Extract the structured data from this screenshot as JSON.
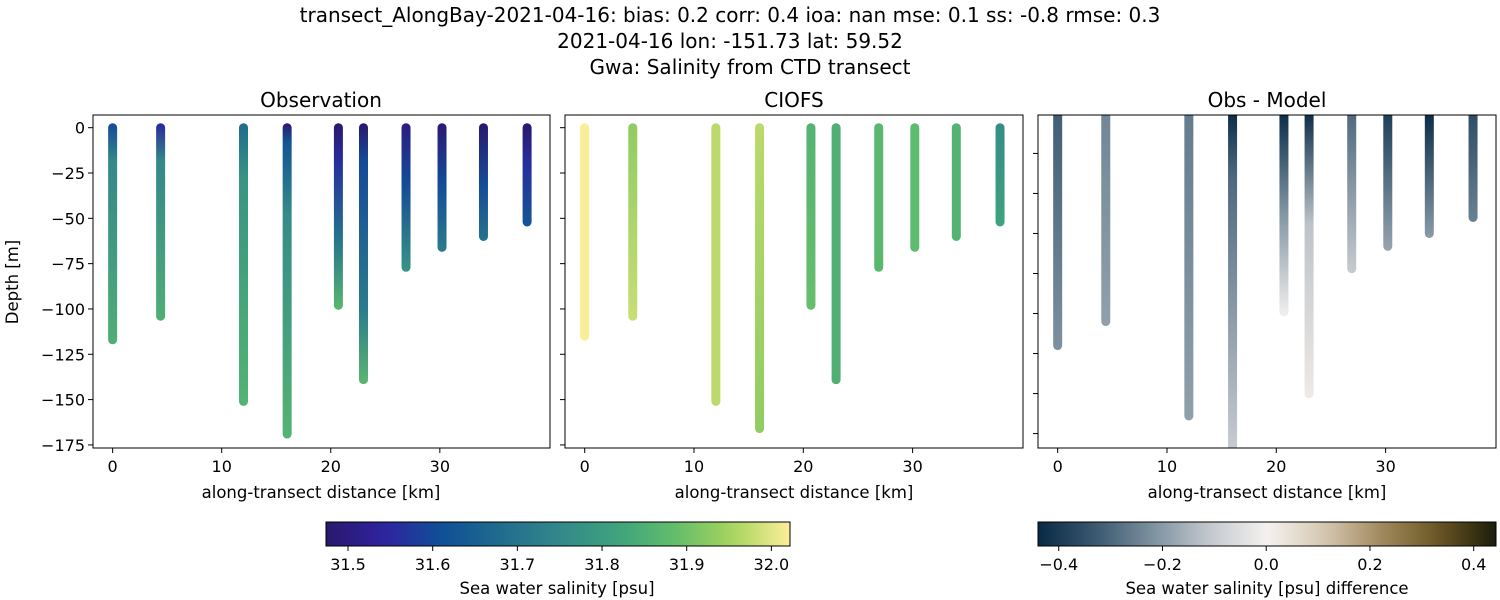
{
  "suptitle": [
    "transect_AlongBay-2021-04-16: bias: 0.2  corr: 0.4  ioa: nan  mse: 0.1  ss: -0.8  rmse: 0.3",
    "2021-04-16 lon: -151.73 lat: 59.52",
    "Gwa: Salinity from CTD transect"
  ],
  "chart_data": [
    {
      "type": "scatter",
      "title": "Observation",
      "xlabel": "along-transect distance [km]",
      "ylabel": "Depth [m]",
      "xlim": [
        -1.8,
        40.1
      ],
      "ylim": [
        -176.7,
        7
      ],
      "xticks": [
        "0",
        "10",
        "20",
        "30"
      ],
      "yticks": [
        "0",
        "−25",
        "−50",
        "−75",
        "−100",
        "−125",
        "−150",
        "−175"
      ],
      "colormap": "haline",
      "profiles": [
        {
          "x": 0,
          "depth": -117,
          "stops": [
            [
              0,
              31.6
            ],
            [
              -20,
              31.75
            ],
            [
              -117,
              31.85
            ]
          ]
        },
        {
          "x": 4.4,
          "depth": -104,
          "stops": [
            [
              0,
              31.55
            ],
            [
              -20,
              31.75
            ],
            [
              -104,
              31.85
            ]
          ]
        },
        {
          "x": 12,
          "depth": -151,
          "stops": [
            [
              0,
              31.68
            ],
            [
              -30,
              31.78
            ],
            [
              -151,
              31.86
            ]
          ]
        },
        {
          "x": 16,
          "depth": -169,
          "stops": [
            [
              0,
              31.45
            ],
            [
              -10,
              31.62
            ],
            [
              -50,
              31.76
            ],
            [
              -169,
              31.86
            ]
          ]
        },
        {
          "x": 20.7,
          "depth": -98,
          "stops": [
            [
              0,
              31.45
            ],
            [
              -20,
              31.56
            ],
            [
              -60,
              31.7
            ],
            [
              -98,
              31.87
            ]
          ]
        },
        {
          "x": 23,
          "depth": -139,
          "stops": [
            [
              0,
              31.46
            ],
            [
              -20,
              31.6
            ],
            [
              -100,
              31.72
            ],
            [
              -139,
              31.87
            ]
          ]
        },
        {
          "x": 26.9,
          "depth": -77,
          "stops": [
            [
              0,
              31.5
            ],
            [
              -30,
              31.6
            ],
            [
              -77,
              31.78
            ]
          ]
        },
        {
          "x": 30.2,
          "depth": -66,
          "stops": [
            [
              0,
              31.48
            ],
            [
              -30,
              31.6
            ],
            [
              -66,
              31.72
            ]
          ]
        },
        {
          "x": 34,
          "depth": -60,
          "stops": [
            [
              0,
              31.45
            ],
            [
              -30,
              31.6
            ],
            [
              -60,
              31.7
            ]
          ]
        },
        {
          "x": 38,
          "depth": -52,
          "stops": [
            [
              0,
              31.45
            ],
            [
              -20,
              31.56
            ],
            [
              -52,
              31.63
            ]
          ]
        }
      ]
    },
    {
      "type": "scatter",
      "title": "CIOFS",
      "xlabel": "along-transect distance [km]",
      "xlim": [
        -1.8,
        40.1
      ],
      "ylim": [
        -176.7,
        7
      ],
      "xticks": [
        "0",
        "10",
        "20",
        "30"
      ],
      "colormap": "haline",
      "profiles": [
        {
          "x": 0,
          "depth": -115,
          "stops": [
            [
              0,
              32.02
            ],
            [
              -115,
              32.02
            ]
          ]
        },
        {
          "x": 4.4,
          "depth": -104,
          "stops": [
            [
              0,
              31.93
            ],
            [
              -104,
              31.98
            ]
          ]
        },
        {
          "x": 12,
          "depth": -151,
          "stops": [
            [
              0,
              31.97
            ],
            [
              -151,
              31.97
            ]
          ]
        },
        {
          "x": 16,
          "depth": -166,
          "stops": [
            [
              0,
              31.97
            ],
            [
              -166,
              31.93
            ]
          ]
        },
        {
          "x": 20.7,
          "depth": -98,
          "stops": [
            [
              0,
              31.86
            ],
            [
              -98,
              31.89
            ]
          ]
        },
        {
          "x": 23,
          "depth": -139,
          "stops": [
            [
              0,
              31.85
            ],
            [
              -139,
              31.85
            ]
          ]
        },
        {
          "x": 26.9,
          "depth": -77,
          "stops": [
            [
              0,
              31.87
            ],
            [
              -77,
              31.87
            ]
          ]
        },
        {
          "x": 30.2,
          "depth": -66,
          "stops": [
            [
              0,
              31.88
            ],
            [
              -66,
              31.88
            ]
          ]
        },
        {
          "x": 34,
          "depth": -60,
          "stops": [
            [
              0,
              31.86
            ],
            [
              -60,
              31.86
            ]
          ]
        },
        {
          "x": 38,
          "depth": -52,
          "stops": [
            [
              0,
              31.76
            ],
            [
              -52,
              31.82
            ]
          ]
        }
      ]
    },
    {
      "type": "scatter",
      "title": "Obs - Model",
      "xlabel": "along-transect distance [km]",
      "xlim": [
        -1.8,
        40.1
      ],
      "ylim": [
        -209,
        -1
      ],
      "yticks_values": [
        -25,
        -50,
        -75,
        -100,
        -125,
        -150,
        -175,
        -200
      ],
      "xticks": [
        "0",
        "10",
        "20",
        "30"
      ],
      "colormap": "diff",
      "profiles": [
        {
          "x": 0,
          "depth": -145,
          "stops": [
            [
              -1,
              -0.32
            ],
            [
              -145,
              -0.22
            ]
          ]
        },
        {
          "x": 4.4,
          "depth": -130,
          "stops": [
            [
              -1,
              -0.24
            ],
            [
              -130,
              -0.19
            ]
          ]
        },
        {
          "x": 12,
          "depth": -189,
          "stops": [
            [
              -1,
              -0.26
            ],
            [
              -189,
              -0.19
            ]
          ]
        },
        {
          "x": 16,
          "depth": -208,
          "stops": [
            [
              -1,
              -0.46
            ],
            [
              -40,
              -0.3
            ],
            [
              -208,
              -0.1
            ]
          ]
        },
        {
          "x": 20.7,
          "depth": -124,
          "stops": [
            [
              -1,
              -0.46
            ],
            [
              -60,
              -0.22
            ],
            [
              -124,
              0.0
            ]
          ]
        },
        {
          "x": 23,
          "depth": -175,
          "stops": [
            [
              -1,
              -0.46
            ],
            [
              -70,
              -0.12
            ],
            [
              -175,
              0.02
            ]
          ]
        },
        {
          "x": 26.9,
          "depth": -97,
          "stops": [
            [
              -1,
              -0.3
            ],
            [
              -97,
              -0.1
            ]
          ]
        },
        {
          "x": 30.2,
          "depth": -83,
          "stops": [
            [
              -1,
              -0.4
            ],
            [
              -83,
              -0.18
            ]
          ]
        },
        {
          "x": 34,
          "depth": -75,
          "stops": [
            [
              -1,
              -0.47
            ],
            [
              -75,
              -0.2
            ]
          ]
        },
        {
          "x": 38,
          "depth": -65,
          "stops": [
            [
              -1,
              -0.36
            ],
            [
              -65,
              -0.25
            ]
          ]
        }
      ]
    }
  ],
  "colorbars": [
    {
      "label": "Sea water salinity [psu]",
      "range": [
        31.474,
        32.022
      ],
      "ticks": [
        "31.5",
        "31.6",
        "31.7",
        "31.8",
        "31.9",
        "32.0"
      ],
      "tick_values": [
        31.5,
        31.6,
        31.7,
        31.8,
        31.9,
        32.0
      ],
      "colormap": "haline"
    },
    {
      "label": "Sea water salinity [psu] difference",
      "range": [
        -0.44,
        0.443
      ],
      "ticks": [
        "−0.4",
        "−0.2",
        "0.0",
        "0.2",
        "0.4"
      ],
      "tick_values": [
        -0.4,
        -0.2,
        0.0,
        0.2,
        0.4
      ],
      "colormap": "diff"
    }
  ],
  "colormaps": {
    "haline": [
      "#2a186c",
      "#2f22a0",
      "#0f5096",
      "#1f6b8e",
      "#33878a",
      "#3da27e",
      "#62bd6c",
      "#a6d45d",
      "#fdee99"
    ],
    "diff": [
      "#082a45",
      "#3a5870",
      "#7d919f",
      "#c4c9ce",
      "#f4f1ef",
      "#d6c8b2",
      "#a0895e",
      "#6a5623",
      "#1c1c0a"
    ]
  }
}
